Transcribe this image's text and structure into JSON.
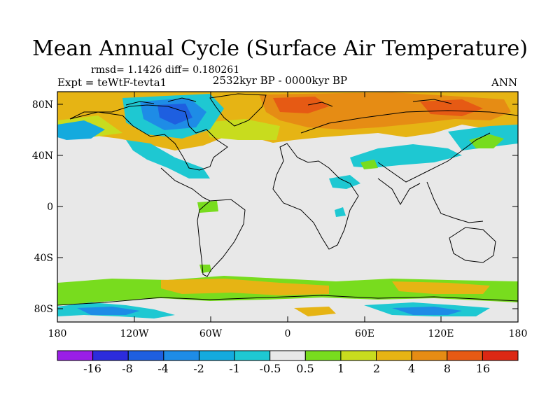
{
  "title": "Mean Annual Cycle (Surface Air Temperature)",
  "stats": "rmsd= 1.1426 diff= 0.180261",
  "experiment": "Expt = teWtF-tevta1",
  "period": "2532kyr BP - 0000kyr BP",
  "season": "ANN",
  "lat_ticks": [
    "80N",
    "40N",
    "0",
    "40S",
    "80S"
  ],
  "lon_ticks": [
    "180",
    "120W",
    "60W",
    "0",
    "60E",
    "120E",
    "180"
  ],
  "colorbar": {
    "labels": [
      "-16",
      "-8",
      "-4",
      "-2",
      "-1",
      "-0.5",
      "0.5",
      "1",
      "2",
      "4",
      "8",
      "16"
    ],
    "colors": [
      "#9a1ee6",
      "#2c2cdc",
      "#1e5fe0",
      "#1e8ce6",
      "#14aade",
      "#1ec8d2",
      "#e8e8e8",
      "#78dc1e",
      "#c8dc1e",
      "#e6b414",
      "#e68c14",
      "#e65a14",
      "#dc2814"
    ]
  }
}
